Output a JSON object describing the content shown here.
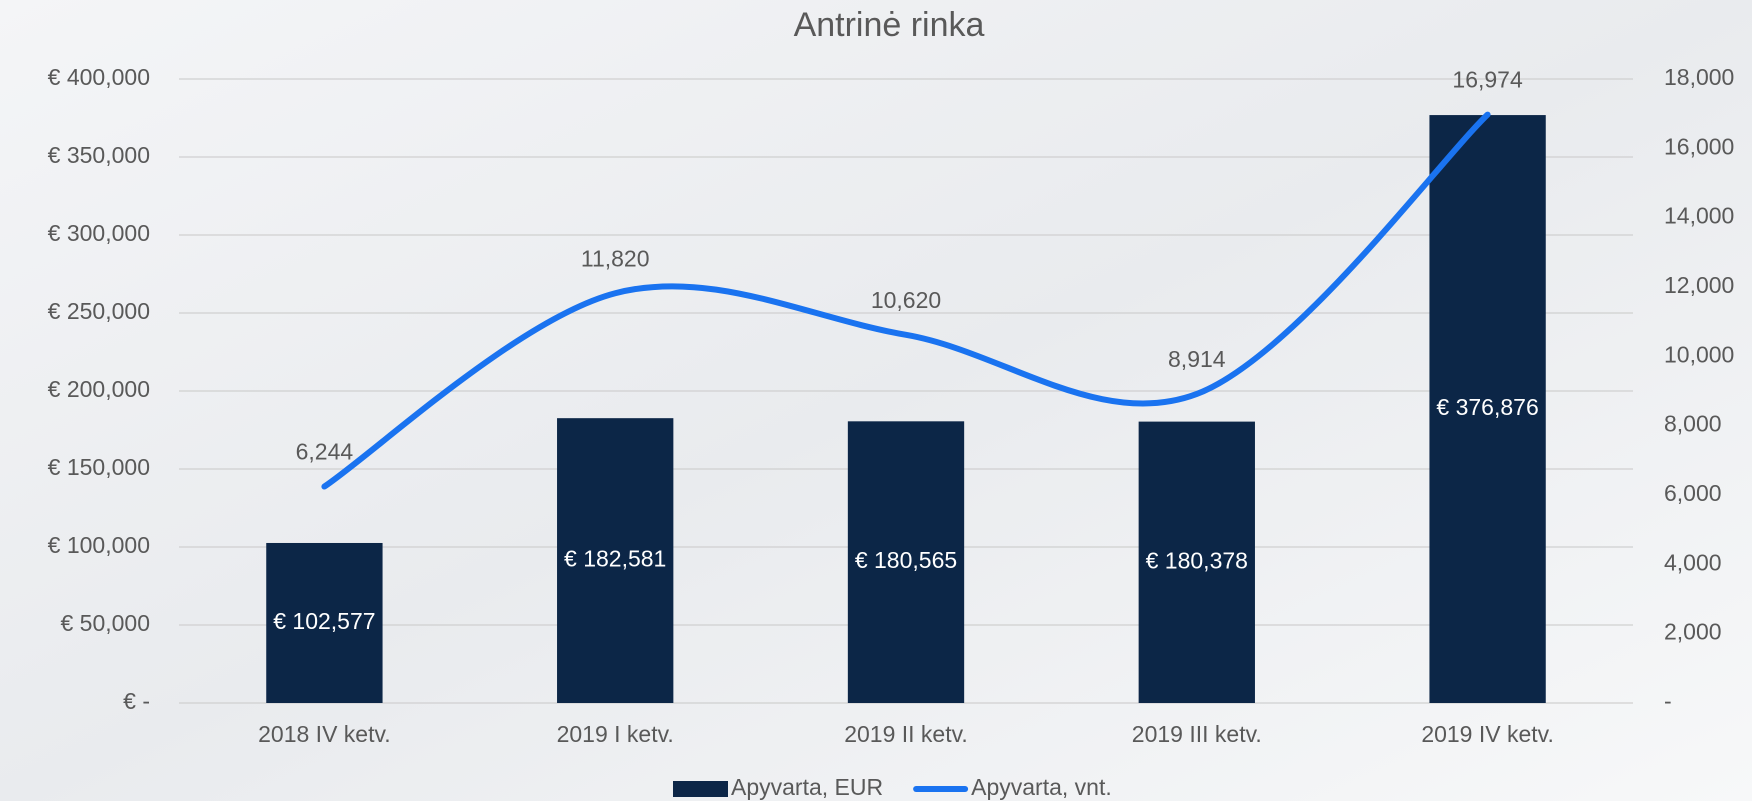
{
  "chart_data": {
    "type": "bar",
    "title": "Antrinė rinka",
    "categories": [
      "2018 IV ketv.",
      "2019 I ketv.",
      "2019 II ketv.",
      "2019 III ketv.",
      "2019 IV ketv."
    ],
    "series": [
      {
        "name": "Apyvarta, EUR",
        "type": "bar",
        "color": "#0c2647",
        "values": [
          102577,
          182581,
          180565,
          180378,
          376876
        ],
        "value_labels": [
          "€ 102,577",
          "€ 182,581",
          "€ 180,565",
          "€ 180,378",
          "€ 376,876"
        ]
      },
      {
        "name": "Apyvarta, vnt.",
        "type": "line",
        "axis": "y2",
        "color": "#1a73f0",
        "values": [
          6244,
          11820,
          10620,
          8914,
          16974
        ],
        "value_labels": [
          "6,244",
          "11,820",
          "10,620",
          "8,914",
          "16,974"
        ]
      }
    ],
    "ylim": [
      0,
      400000
    ],
    "yticks": [
      {
        "value": 0,
        "label": "€ -"
      },
      {
        "value": 50000,
        "label": "€ 50,000"
      },
      {
        "value": 100000,
        "label": "€ 100,000"
      },
      {
        "value": 150000,
        "label": "€ 150,000"
      },
      {
        "value": 200000,
        "label": "€ 200,000"
      },
      {
        "value": 250000,
        "label": "€ 250,000"
      },
      {
        "value": 300000,
        "label": "€ 300,000"
      },
      {
        "value": 350000,
        "label": "€ 350,000"
      },
      {
        "value": 400000,
        "label": "€ 400,000"
      }
    ],
    "y2lim": [
      0,
      18000
    ],
    "y2ticks": [
      {
        "value": 0,
        "label": "-"
      },
      {
        "value": 2000,
        "label": "2,000"
      },
      {
        "value": 4000,
        "label": "4,000"
      },
      {
        "value": 6000,
        "label": "6,000"
      },
      {
        "value": 8000,
        "label": "8,000"
      },
      {
        "value": 10000,
        "label": "10,000"
      },
      {
        "value": 12000,
        "label": "12,000"
      },
      {
        "value": 14000,
        "label": "14,000"
      },
      {
        "value": 16000,
        "label": "16,000"
      },
      {
        "value": 18000,
        "label": "18,000"
      }
    ],
    "grid": true,
    "legend": "bottom"
  }
}
